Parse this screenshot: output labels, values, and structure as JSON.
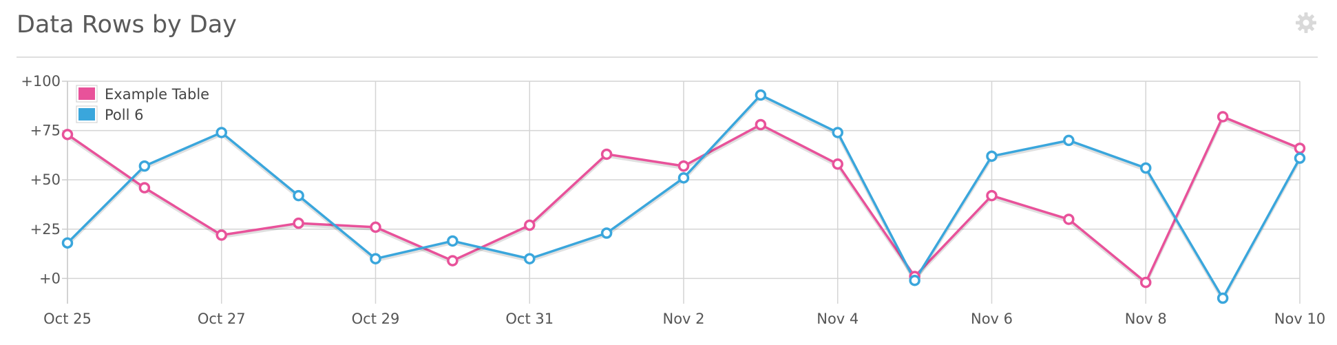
{
  "header": {
    "title": "Data Rows by Day",
    "settings_icon": "gear-icon"
  },
  "chart_data": {
    "type": "line",
    "x": [
      "Oct 25",
      "Oct 26",
      "Oct 27",
      "Oct 28",
      "Oct 29",
      "Oct 30",
      "Oct 31",
      "Nov 1",
      "Nov 2",
      "Nov 3",
      "Nov 4",
      "Nov 5",
      "Nov 6",
      "Nov 7",
      "Nov 8",
      "Nov 9",
      "Nov 10"
    ],
    "x_tick_labels": [
      "Oct 25",
      "Oct 27",
      "Oct 29",
      "Oct 31",
      "Nov 2",
      "Nov 4",
      "Nov 6",
      "Nov 8",
      "Nov 10"
    ],
    "y_tick_values": [
      0,
      25,
      50,
      75,
      100
    ],
    "y_tick_labels": [
      "+0",
      "+25",
      "+50",
      "+75",
      "+100"
    ],
    "ylim": [
      -10,
      100
    ],
    "grid": true,
    "legend_position": "top-left",
    "series": [
      {
        "name": "Example Table",
        "color": "#e8529a",
        "values": [
          73,
          46,
          22,
          28,
          26,
          9,
          27,
          63,
          57,
          78,
          58,
          1,
          42,
          30,
          -2,
          82,
          66
        ]
      },
      {
        "name": "Poll 6",
        "color": "#3aa6dc",
        "values": [
          18,
          57,
          74,
          42,
          10,
          19,
          10,
          23,
          51,
          93,
          74,
          -1,
          62,
          70,
          56,
          -10,
          61
        ]
      }
    ]
  }
}
